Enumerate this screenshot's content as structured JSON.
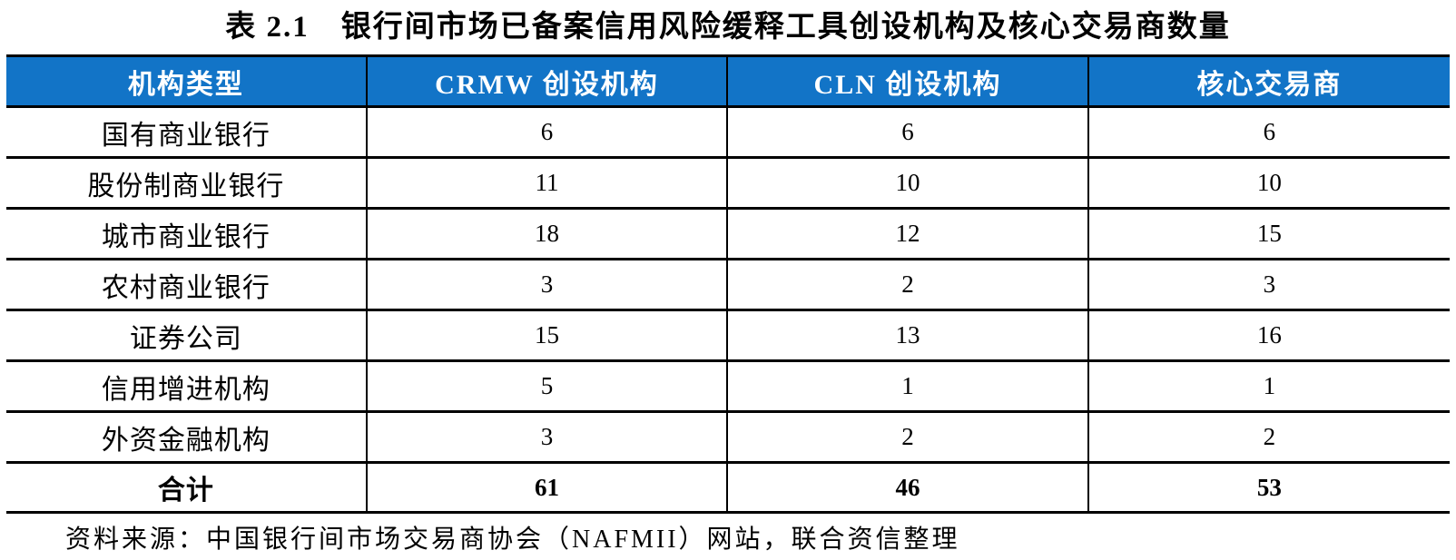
{
  "title": "表 2.1　银行间市场已备案信用风险缓释工具创设机构及核心交易商数量",
  "table": {
    "columns": [
      "机构类型",
      "CRMW 创设机构",
      "CLN 创设机构",
      "核心交易商"
    ],
    "rows": [
      [
        "国有商业银行",
        "6",
        "6",
        "6"
      ],
      [
        "股份制商业银行",
        "11",
        "10",
        "10"
      ],
      [
        "城市商业银行",
        "18",
        "12",
        "15"
      ],
      [
        "农村商业银行",
        "3",
        "2",
        "3"
      ],
      [
        "证券公司",
        "15",
        "13",
        "16"
      ],
      [
        "信用增进机构",
        "5",
        "1",
        "1"
      ],
      [
        "外资金融机构",
        "3",
        "2",
        "2"
      ]
    ],
    "total_row": [
      "合计",
      "61",
      "46",
      "53"
    ]
  },
  "source_note": "资料来源：中国银行间市场交易商协会（NAFMII）网站，联合资信整理",
  "colors": {
    "header_bg": "#1274C7",
    "header_text": "#FFFFFF",
    "border_color": "#000000"
  }
}
